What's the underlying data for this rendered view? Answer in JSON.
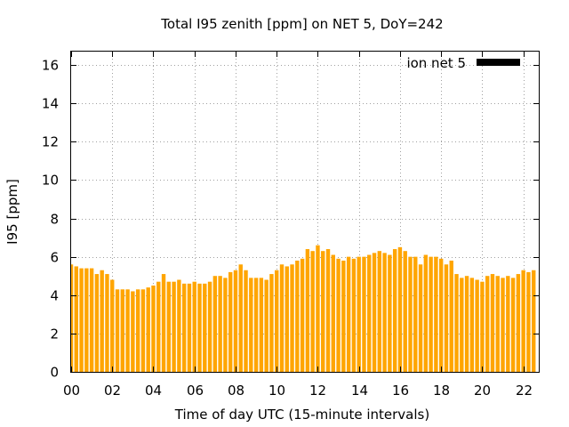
{
  "chart_data": {
    "type": "bar",
    "title": "Total I95 zenith [ppm] on NET 5, DoY=242",
    "xlabel": "Time of day UTC (15-minute intervals)",
    "ylabel": "I95 [ppm]",
    "xlim": [
      0,
      22.75
    ],
    "ylim": [
      0,
      16.7
    ],
    "x_ticks": [
      "00",
      "02",
      "04",
      "06",
      "08",
      "10",
      "12",
      "14",
      "16",
      "18",
      "20",
      "22"
    ],
    "y_ticks": [
      "0",
      "2",
      "4",
      "6",
      "8",
      "10",
      "12",
      "14",
      "16"
    ],
    "grid": true,
    "legend_position": "top-right",
    "bar_width_hours": 0.19,
    "bar_color": "#ffa500",
    "series": [
      {
        "name": "ion net 5",
        "legend_color": "#000000",
        "x_start_hour": 0,
        "x_step_hours": 0.25,
        "values": [
          5.6,
          5.5,
          5.4,
          5.4,
          5.4,
          5.1,
          5.3,
          5.1,
          4.8,
          4.3,
          4.3,
          4.3,
          4.2,
          4.3,
          4.3,
          4.4,
          4.5,
          4.7,
          5.1,
          4.7,
          4.7,
          4.8,
          4.6,
          4.6,
          4.7,
          4.6,
          4.6,
          4.7,
          5.0,
          5.0,
          4.9,
          5.2,
          5.3,
          5.6,
          5.3,
          4.9,
          4.9,
          4.9,
          4.8,
          5.1,
          5.3,
          5.6,
          5.5,
          5.6,
          5.8,
          5.9,
          6.4,
          6.3,
          6.6,
          6.3,
          6.4,
          6.1,
          5.9,
          5.8,
          6.0,
          5.9,
          6.0,
          6.0,
          6.1,
          6.2,
          6.3,
          6.2,
          6.1,
          6.4,
          6.5,
          6.3,
          6.0,
          6.0,
          5.6,
          6.1,
          6.0,
          6.0,
          5.9,
          5.6,
          5.8,
          5.1,
          4.9,
          5.0,
          4.9,
          4.8,
          4.7,
          5.0,
          5.1,
          5.0,
          4.9,
          5.0,
          4.9,
          5.1,
          5.3,
          5.2,
          5.3
        ]
      }
    ]
  }
}
